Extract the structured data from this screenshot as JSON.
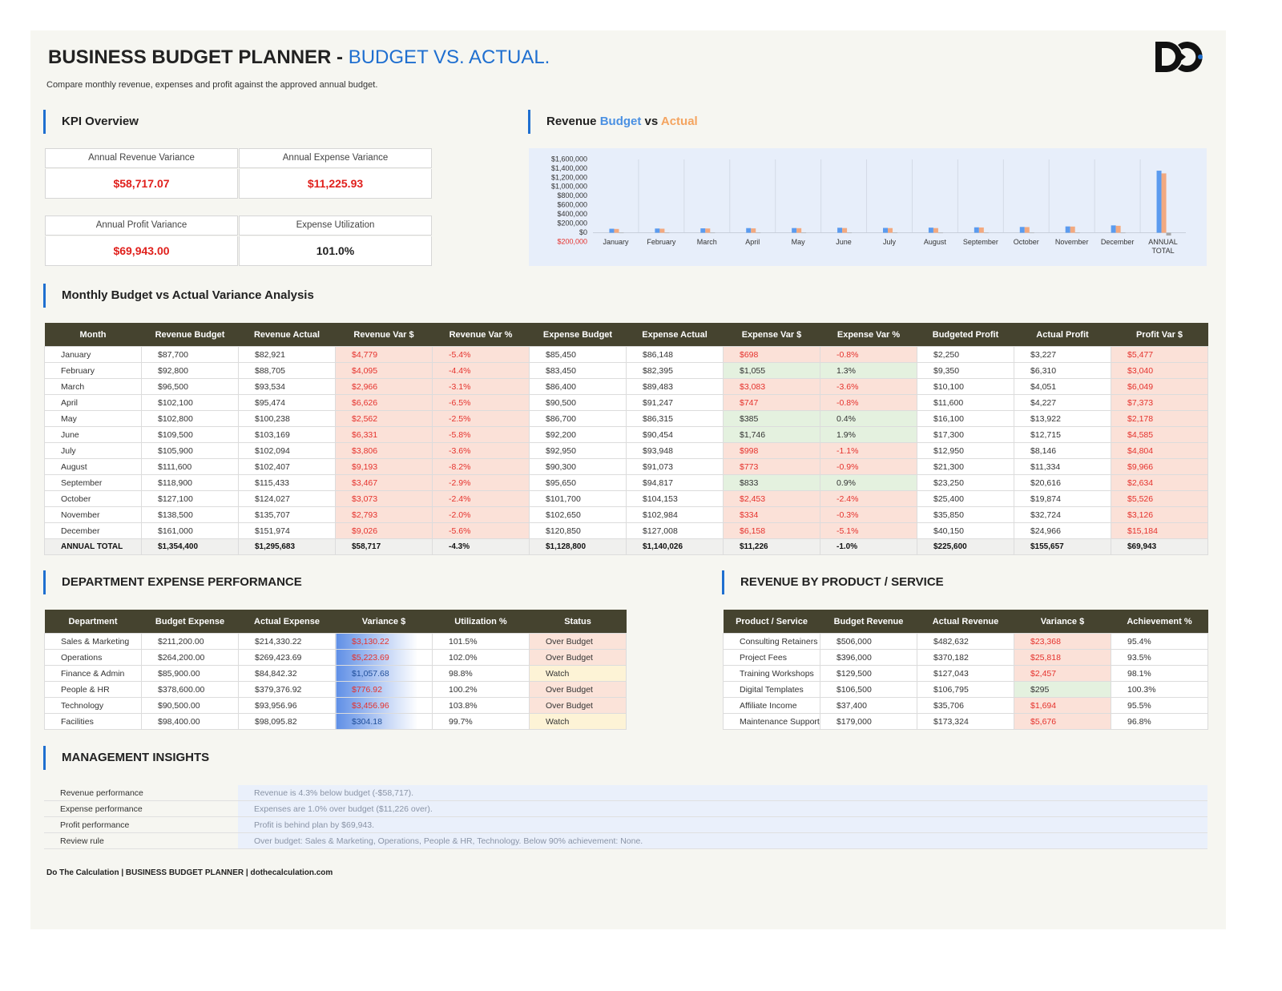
{
  "header": {
    "title": "BUSINESS BUDGET PLANNER",
    "separator": "-",
    "accent": "BUDGET VS. ACTUAL.",
    "description": "Compare monthly revenue, expenses and profit against the approved annual budget."
  },
  "kpi": {
    "heading": "KPI Overview",
    "cards": [
      {
        "label": "Annual Revenue Variance",
        "value": "$58,717.07",
        "color": "#e0201c"
      },
      {
        "label": "Annual Expense Variance",
        "value": "$11,225.93",
        "color": "#e0201c"
      },
      {
        "label": "Annual Profit Variance",
        "value": "$69,943.00",
        "color": "#e0201c"
      },
      {
        "label": "Expense Utilization",
        "value": "101.0%",
        "color": "#222222"
      }
    ]
  },
  "chart_data": {
    "type": "bar",
    "title": "Revenue",
    "title_vs": "vs",
    "categories": [
      "January",
      "February",
      "March",
      "April",
      "May",
      "June",
      "July",
      "August",
      "September",
      "October",
      "November",
      "December",
      "ANNUAL TOTAL"
    ],
    "series": [
      {
        "name": "Budget",
        "color": "#5b9bef",
        "values": [
          87700,
          92800,
          96500,
          102100,
          102800,
          109500,
          105900,
          111600,
          118900,
          127100,
          138500,
          161000,
          1354400
        ]
      },
      {
        "name": "Actual",
        "color": "#f3a97f",
        "values": [
          82921,
          88705,
          93534,
          95474,
          100238,
          103169,
          102094,
          102407,
          115433,
          124027,
          135707,
          151974,
          1295683
        ]
      },
      {
        "color": "#a6a6a6",
        "values": [
          -4779,
          -4095,
          -2966,
          -6626,
          -2562,
          -6331,
          -3806,
          -9193,
          -3467,
          -3073,
          -2793,
          -9026,
          -58717
        ]
      }
    ],
    "ylim": [
      -200000,
      1600000
    ],
    "yticks": [
      {
        "value": 1600000,
        "label": "$1,600,000"
      },
      {
        "value": 1400000,
        "label": "$1,400,000"
      },
      {
        "value": 1200000,
        "label": "$1,200,000"
      },
      {
        "value": 1000000,
        "label": "$1,000,000"
      },
      {
        "value": 800000,
        "label": "$800,000"
      },
      {
        "value": 600000,
        "label": "$600,000"
      },
      {
        "value": 400000,
        "label": "$400,000"
      },
      {
        "value": 200000,
        "label": "$200,000"
      },
      {
        "value": 0,
        "label": "$0"
      },
      {
        "value": -200000,
        "label": "$200,000"
      }
    ],
    "grid": false
  },
  "monthly": {
    "heading": "Monthly Budget vs Actual Variance Analysis",
    "columns": [
      "Month",
      "Revenue Budget",
      "Revenue Actual",
      "Revenue Var $",
      "Revenue Var %",
      "Expense Budget",
      "Expense Actual",
      "Expense Var $",
      "Expense Var %",
      "Budgeted Profit",
      "Actual Profit",
      "Profit Var $"
    ],
    "rows": [
      [
        "January",
        "$87,700",
        "$82,921",
        "$4,779",
        "-5.4%",
        "$85,450",
        "$86,148",
        "$698",
        "-0.8%",
        "$2,250",
        "$3,227",
        "$5,477"
      ],
      [
        "February",
        "$92,800",
        "$88,705",
        "$4,095",
        "-4.4%",
        "$83,450",
        "$82,395",
        "$1,055",
        "1.3%",
        "$9,350",
        "$6,310",
        "$3,040"
      ],
      [
        "March",
        "$96,500",
        "$93,534",
        "$2,966",
        "-3.1%",
        "$86,400",
        "$89,483",
        "$3,083",
        "-3.6%",
        "$10,100",
        "$4,051",
        "$6,049"
      ],
      [
        "April",
        "$102,100",
        "$95,474",
        "$6,626",
        "-6.5%",
        "$90,500",
        "$91,247",
        "$747",
        "-0.8%",
        "$11,600",
        "$4,227",
        "$7,373"
      ],
      [
        "May",
        "$102,800",
        "$100,238",
        "$2,562",
        "-2.5%",
        "$86,700",
        "$86,315",
        "$385",
        "0.4%",
        "$16,100",
        "$13,922",
        "$2,178"
      ],
      [
        "June",
        "$109,500",
        "$103,169",
        "$6,331",
        "-5.8%",
        "$92,200",
        "$90,454",
        "$1,746",
        "1.9%",
        "$17,300",
        "$12,715",
        "$4,585"
      ],
      [
        "July",
        "$105,900",
        "$102,094",
        "$3,806",
        "-3.6%",
        "$92,950",
        "$93,948",
        "$998",
        "-1.1%",
        "$12,950",
        "$8,146",
        "$4,804"
      ],
      [
        "August",
        "$111,600",
        "$102,407",
        "$9,193",
        "-8.2%",
        "$90,300",
        "$91,073",
        "$773",
        "-0.9%",
        "$21,300",
        "$11,334",
        "$9,966"
      ],
      [
        "September",
        "$118,900",
        "$115,433",
        "$3,467",
        "-2.9%",
        "$95,650",
        "$94,817",
        "$833",
        "0.9%",
        "$23,250",
        "$20,616",
        "$2,634"
      ],
      [
        "October",
        "$127,100",
        "$124,027",
        "$3,073",
        "-2.4%",
        "$101,700",
        "$104,153",
        "$2,453",
        "-2.4%",
        "$25,400",
        "$19,874",
        "$5,526"
      ],
      [
        "November",
        "$138,500",
        "$135,707",
        "$2,793",
        "-2.0%",
        "$102,650",
        "$102,984",
        "$334",
        "-0.3%",
        "$35,850",
        "$32,724",
        "$3,126"
      ],
      [
        "December",
        "$161,000",
        "$151,974",
        "$9,026",
        "-5.6%",
        "$120,850",
        "$127,008",
        "$6,158",
        "-5.1%",
        "$40,150",
        "$24,966",
        "$15,184"
      ]
    ],
    "total": [
      "ANNUAL TOTAL",
      "$1,354,400",
      "$1,295,683",
      "$58,717",
      "-4.3%",
      "$1,128,800",
      "$1,140,026",
      "$11,226",
      "-1.0%",
      "$225,600",
      "$155,657",
      "$69,943"
    ]
  },
  "department": {
    "heading": "DEPARTMENT EXPENSE PERFORMANCE",
    "columns": [
      "Department",
      "Budget Expense",
      "Actual Expense",
      "Variance $",
      "Utilization %",
      "Status"
    ],
    "rows": [
      [
        "Sales & Marketing",
        "$211,200.00",
        "$214,330.22",
        "$3,130.22",
        "101.5%",
        "Over Budget"
      ],
      [
        "Operations",
        "$264,200.00",
        "$269,423.69",
        "$5,223.69",
        "102.0%",
        "Over Budget"
      ],
      [
        "Finance & Admin",
        "$85,900.00",
        "$84,842.32",
        "$1,057.68",
        "98.8%",
        "Watch"
      ],
      [
        "People & HR",
        "$378,600.00",
        "$379,376.92",
        "$776.92",
        "100.2%",
        "Over Budget"
      ],
      [
        "Technology",
        "$90,500.00",
        "$93,956.96",
        "$3,456.96",
        "103.8%",
        "Over Budget"
      ],
      [
        "Facilities",
        "$98,400.00",
        "$98,095.82",
        "$304.18",
        "99.7%",
        "Watch"
      ]
    ]
  },
  "products": {
    "heading": "REVENUE BY PRODUCT / SERVICE",
    "columns": [
      "Product / Service",
      "Budget Revenue",
      "Actual Revenue",
      "Variance $",
      "Achievement %"
    ],
    "rows": [
      [
        "Consulting Retainers",
        "$506,000",
        "$482,632",
        "$23,368",
        "95.4%"
      ],
      [
        "Project Fees",
        "$396,000",
        "$370,182",
        "$25,818",
        "93.5%"
      ],
      [
        "Training Workshops",
        "$129,500",
        "$127,043",
        "$2,457",
        "98.1%"
      ],
      [
        "Digital Templates",
        "$106,500",
        "$106,795",
        "$295",
        "100.3%"
      ],
      [
        "Affiliate Income",
        "$37,400",
        "$35,706",
        "$1,694",
        "95.5%"
      ],
      [
        "Maintenance Support",
        "$179,000",
        "$173,324",
        "$5,676",
        "96.8%"
      ]
    ]
  },
  "insights": {
    "heading": "MANAGEMENT INSIGHTS",
    "rows": [
      [
        "Revenue performance",
        "Revenue is 4.3% below budget (-$58,717)."
      ],
      [
        "Expense performance",
        "Expenses are 1.0% over budget ($11,226 over)."
      ],
      [
        "Profit performance",
        "Profit is behind plan by $69,943."
      ],
      [
        "Review rule",
        "Over budget: Sales & Marketing, Operations, People & HR, Technology.  Below 90% achievement: None."
      ]
    ]
  },
  "footer": "Do The Calculation | BUSINESS BUDGET PLANNER | dothecalculation.com"
}
